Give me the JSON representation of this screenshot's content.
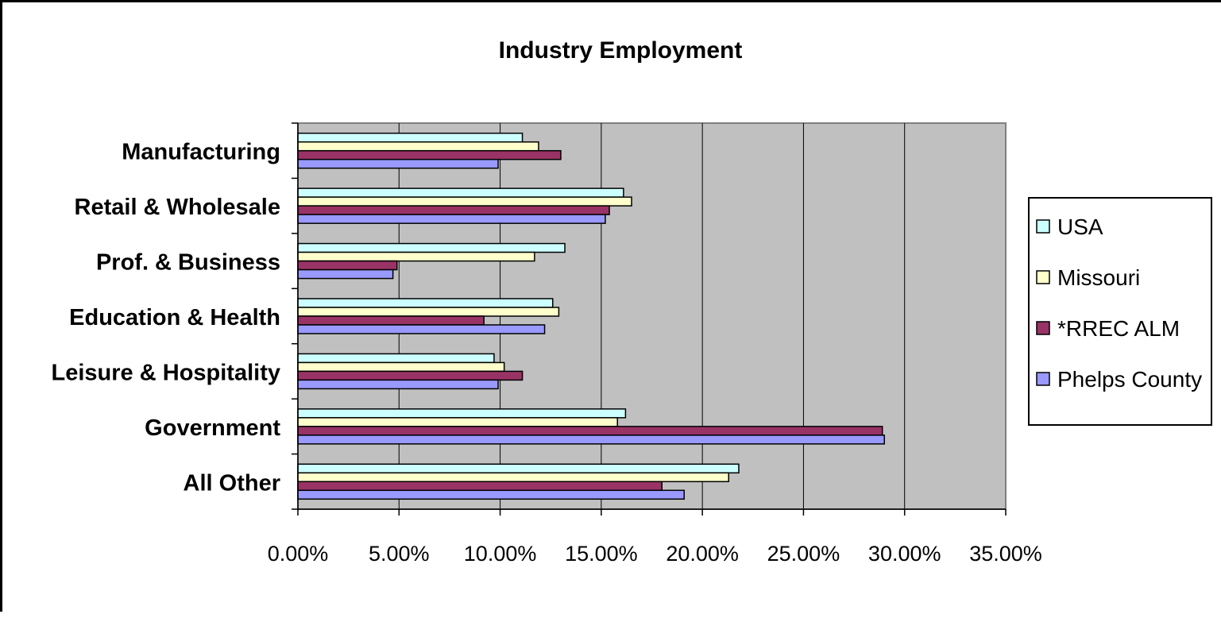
{
  "chart_data": {
    "type": "bar",
    "orientation": "horizontal",
    "title": "Industry Employment",
    "categories": [
      "Manufacturing",
      "Retail & Wholesale",
      "Prof. & Business",
      "Education & Health",
      "Leisure & Hospitality",
      "Government",
      "All Other"
    ],
    "series": [
      {
        "name": "USA",
        "color": "#CCFFFF",
        "values": [
          11.1,
          16.1,
          13.2,
          12.6,
          9.7,
          16.2,
          21.8
        ]
      },
      {
        "name": "Missouri",
        "color": "#FFFFCC",
        "values": [
          11.9,
          16.5,
          11.7,
          12.9,
          10.2,
          15.8,
          21.3
        ]
      },
      {
        "name": "*RREC ALM",
        "color": "#993366",
        "values": [
          13.0,
          15.4,
          4.9,
          9.2,
          11.1,
          28.9,
          18.0
        ]
      },
      {
        "name": "Phelps County",
        "color": "#9999FF",
        "values": [
          9.9,
          15.2,
          4.7,
          12.2,
          9.9,
          29.0,
          19.1
        ]
      }
    ],
    "xticks": [
      "0.00%",
      "5.00%",
      "10.00%",
      "15.00%",
      "20.00%",
      "25.00%",
      "30.00%",
      "35.00%"
    ],
    "xlim": [
      0,
      35
    ],
    "grid": true,
    "plot_background": "#C0C0C0",
    "legend_position": "right"
  }
}
